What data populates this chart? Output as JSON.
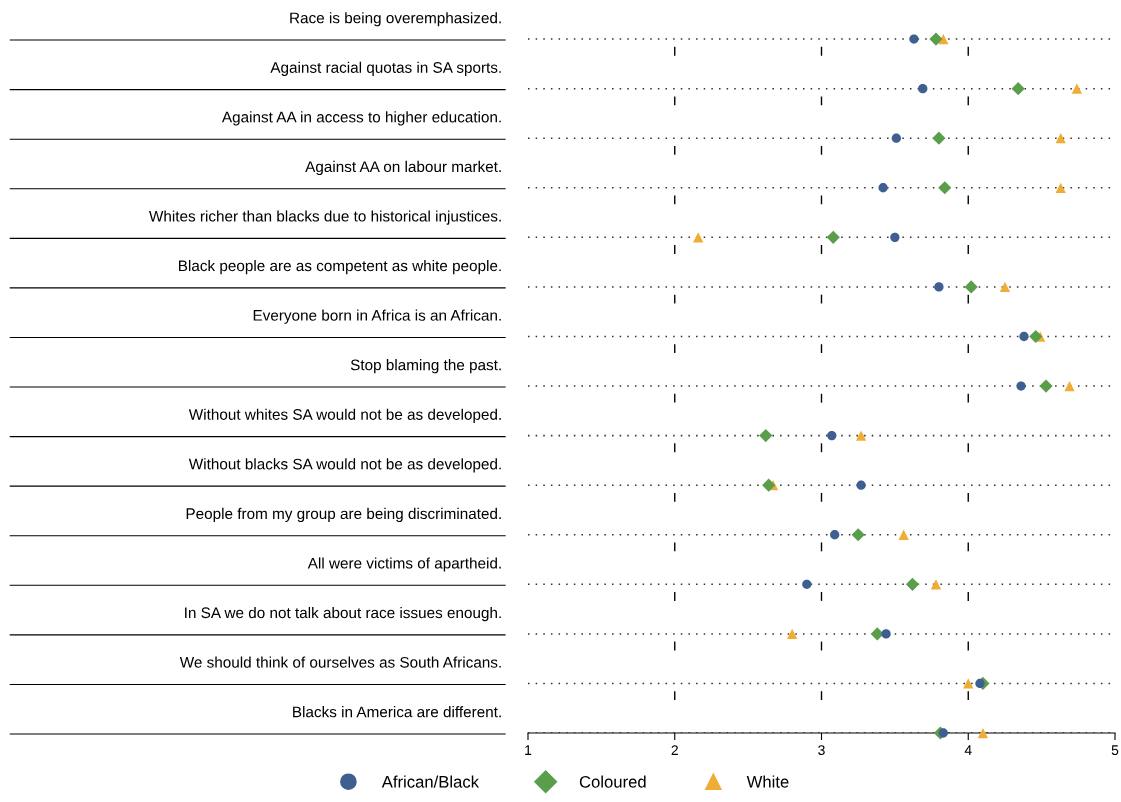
{
  "chart_data": {
    "type": "scatter",
    "orientation": "horizontal",
    "categories": [
      "Race is being overemphasized.",
      "Against racial quotas in SA sports.",
      "Against AA in access to higher education.",
      "Against AA on labour market.",
      "Whites richer than blacks due to historical injustices.",
      "Black people are as competent as white people.",
      "Everyone born in Africa is an African.",
      "Stop blaming the past.",
      "Without whites SA would not be as developed.",
      "Without blacks SA would not be as developed.",
      "People from my group are being discriminated.",
      "All were victims of apartheid.",
      "In SA we do not talk about race issues enough.",
      "We should think of ourselves as South Africans.",
      "Blacks in America are different."
    ],
    "series": [
      {
        "name": "African/Black",
        "color": "#3e5f8f",
        "marker": "circle",
        "values": [
          3.63,
          3.69,
          3.51,
          3.42,
          3.5,
          3.8,
          4.38,
          4.36,
          3.07,
          3.27,
          3.09,
          2.9,
          3.44,
          4.08,
          3.83
        ]
      },
      {
        "name": "Coloured",
        "color": "#5a9e4b",
        "marker": "diamond",
        "values": [
          3.78,
          4.34,
          3.8,
          3.84,
          3.08,
          4.02,
          4.46,
          4.53,
          2.62,
          2.64,
          3.25,
          3.62,
          3.38,
          4.1,
          3.81
        ]
      },
      {
        "name": "White",
        "color": "#f0ad35",
        "marker": "triangle",
        "values": [
          3.83,
          4.74,
          4.63,
          4.63,
          2.16,
          4.25,
          4.49,
          4.69,
          3.27,
          2.67,
          3.56,
          3.78,
          2.8,
          4.0,
          4.1
        ]
      }
    ],
    "xlim": [
      1,
      5
    ],
    "xticks": [
      1,
      2,
      3,
      4,
      5
    ],
    "grid": "y",
    "legend": "bottom"
  }
}
